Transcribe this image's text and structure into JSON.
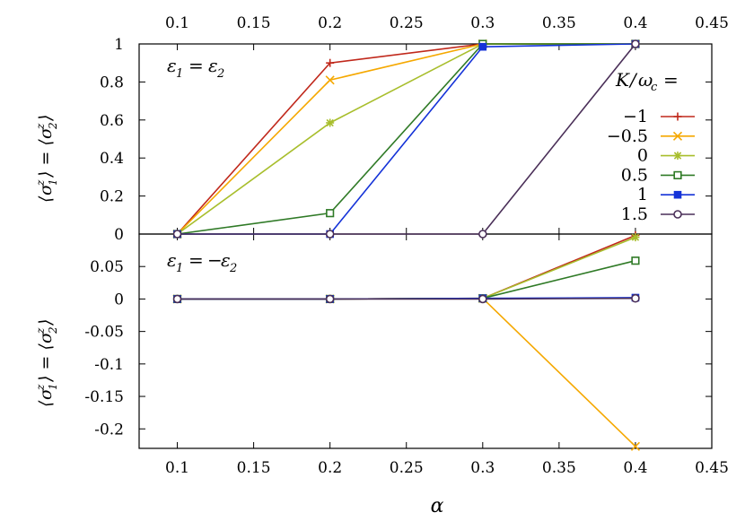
{
  "chart_data": {
    "type": "line",
    "x_top_tick_labels": [
      "0.1",
      "0.15",
      "0.2",
      "0.25",
      "0.3",
      "0.35",
      "0.4",
      "0.45"
    ],
    "x_bottom_tick_labels": [
      "0.1",
      "0.15",
      "0.2",
      "0.25",
      "0.3",
      "0.35",
      "0.4",
      "0.45"
    ],
    "x_ticks": [
      0.1,
      0.15,
      0.2,
      0.25,
      0.3,
      0.35,
      0.4,
      0.45
    ],
    "xlim": [
      0.075,
      0.45
    ],
    "xlabel": "α",
    "legend_title": "K/ω_c =",
    "panels": [
      {
        "annotation": "ε_1 = ε_2",
        "ylabel": "⟨σ_1^z⟩ = ⟨σ_2^z⟩",
        "ylim": [
          0,
          1
        ],
        "y_ticks": [
          0,
          0.2,
          0.4,
          0.6,
          0.8,
          1
        ],
        "y_tick_labels": [
          "0",
          "0.2",
          "0.4",
          "0.6",
          "0.8",
          "1"
        ],
        "x": [
          0.1,
          0.2,
          0.3,
          0.4
        ],
        "series": [
          {
            "name": "−1",
            "color": "#c0281b",
            "marker": "plus",
            "values": [
              0,
              0.9,
              1.0,
              1.0
            ]
          },
          {
            "name": "−0.5",
            "color": "#f5a800",
            "marker": "cross",
            "values": [
              0,
              0.81,
              1.0,
              1.0
            ]
          },
          {
            "name": "0",
            "color": "#a8be2c",
            "marker": "star",
            "values": [
              0,
              0.585,
              1.0,
              1.0
            ]
          },
          {
            "name": "0.5",
            "color": "#2f7a26",
            "marker": "open-square",
            "values": [
              0,
              0.11,
              1.0,
              1.0
            ]
          },
          {
            "name": "1",
            "color": "#1432d8",
            "marker": "filled-square",
            "values": [
              0,
              0,
              0.985,
              1.0
            ]
          },
          {
            "name": "1.5",
            "color": "#4a2f58",
            "marker": "open-circle",
            "values": [
              0,
              0,
              0,
              1.0
            ]
          }
        ]
      },
      {
        "annotation": "ε_1 = −ε_2",
        "ylabel": "⟨σ_1^z⟩ = ⟨σ_2^z⟩",
        "ylim": [
          -0.23,
          0.1
        ],
        "y_ticks": [
          0.05,
          0,
          -0.05,
          -0.1,
          -0.15,
          -0.2
        ],
        "y_tick_labels": [
          "0.05",
          "0",
          "-0.05",
          "-0.1",
          "-0.15",
          "-0.2"
        ],
        "x": [
          0.1,
          0.2,
          0.3,
          0.4
        ],
        "series": [
          {
            "name": "−1",
            "color": "#c0281b",
            "marker": "plus",
            "values": [
              0,
              0,
              0.001,
              0.098
            ]
          },
          {
            "name": "−0.5",
            "color": "#f5a800",
            "marker": "cross",
            "values": [
              0,
              0,
              0.001,
              -0.227
            ]
          },
          {
            "name": "0",
            "color": "#a8be2c",
            "marker": "star",
            "values": [
              0,
              0,
              0.001,
              0.095
            ]
          },
          {
            "name": "0.5",
            "color": "#2f7a26",
            "marker": "open-square",
            "values": [
              0,
              0,
              0.001,
              0.059
            ]
          },
          {
            "name": "1",
            "color": "#1432d8",
            "marker": "filled-square",
            "values": [
              0,
              0,
              0.001,
              0.002
            ]
          },
          {
            "name": "1.5",
            "color": "#4a2f58",
            "marker": "open-circle",
            "values": [
              0,
              0,
              0,
              0.001
            ]
          }
        ]
      }
    ]
  }
}
